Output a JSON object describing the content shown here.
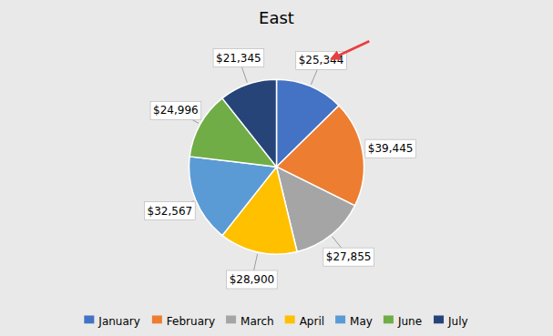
{
  "chart_data": {
    "type": "pie",
    "title": "East",
    "categories": [
      "January",
      "February",
      "March",
      "April",
      "May",
      "June",
      "July"
    ],
    "values": [
      25344,
      39445,
      27855,
      28900,
      32567,
      24996,
      21345
    ],
    "value_labels": [
      "$25,344",
      "$39,445",
      "$27,855",
      "$28,900",
      "$32,567",
      "$24,996",
      "$21,345"
    ],
    "colors": [
      "#4472C4",
      "#ED7D31",
      "#A5A5A5",
      "#FFC000",
      "#5B9BD5",
      "#70AD47",
      "#264478"
    ],
    "data_labels": true,
    "legend": "bottom"
  }
}
